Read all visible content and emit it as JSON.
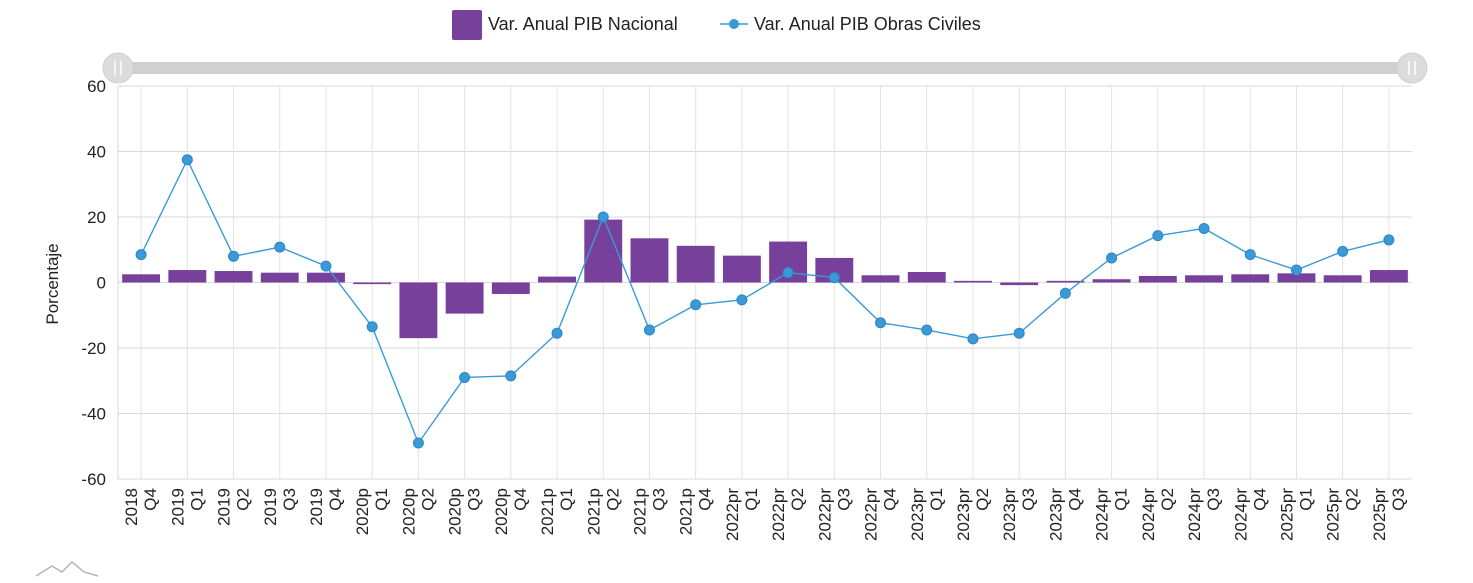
{
  "chart_data": {
    "type": "bar+line",
    "title": "",
    "xlabel": "",
    "ylabel": "Porcentaje",
    "ylim": [
      -60,
      60
    ],
    "yticks": [
      60,
      40,
      20,
      0,
      -20,
      -40,
      -60
    ],
    "grid": true,
    "legend_position": "top",
    "categories": [
      [
        "2018",
        "Q4"
      ],
      [
        "2019",
        "Q1"
      ],
      [
        "2019",
        "Q2"
      ],
      [
        "2019",
        "Q3"
      ],
      [
        "2019",
        "Q4"
      ],
      [
        "2020p",
        "Q1"
      ],
      [
        "2020p",
        "Q2"
      ],
      [
        "2020p",
        "Q3"
      ],
      [
        "2020p",
        "Q4"
      ],
      [
        "2021p",
        "Q1"
      ],
      [
        "2021p",
        "Q2"
      ],
      [
        "2021p",
        "Q3"
      ],
      [
        "2021p",
        "Q4"
      ],
      [
        "2022pr",
        "Q1"
      ],
      [
        "2022pr",
        "Q2"
      ],
      [
        "2022pr",
        "Q3"
      ],
      [
        "2022pr",
        "Q4"
      ],
      [
        "2023pr",
        "Q1"
      ],
      [
        "2023pr",
        "Q2"
      ],
      [
        "2023pr",
        "Q3"
      ],
      [
        "2023pr",
        "Q4"
      ],
      [
        "2024pr",
        "Q1"
      ],
      [
        "2024pr",
        "Q2"
      ],
      [
        "2024pr",
        "Q3"
      ],
      [
        "2024pr",
        "Q4"
      ],
      [
        "2025pr",
        "Q1"
      ],
      [
        "2025pr",
        "Q2"
      ],
      [
        "2025pr",
        "Q3"
      ]
    ],
    "series": [
      {
        "name": "Var. Anual PIB Nacional",
        "type": "bar",
        "color": "#76409b",
        "values": [
          2.5,
          3.8,
          3.5,
          3.0,
          3.0,
          -0.5,
          -17.0,
          -9.5,
          -3.5,
          1.8,
          19.2,
          13.5,
          11.2,
          8.2,
          12.5,
          7.5,
          2.2,
          3.2,
          0.5,
          -0.8,
          0.5,
          1.0,
          2.0,
          2.2,
          2.5,
          2.8,
          2.2,
          3.8
        ]
      },
      {
        "name": "Var. Anual PIB Obras Civiles",
        "type": "line",
        "color": "#3a9ad9",
        "values": [
          8.5,
          37.5,
          8.0,
          10.8,
          5.0,
          -13.5,
          -49.0,
          -29.0,
          -28.5,
          -15.5,
          20.0,
          -14.5,
          -6.8,
          -5.3,
          3.0,
          1.5,
          -12.3,
          -14.5,
          -17.2,
          -15.5,
          -3.3,
          7.5,
          14.3,
          16.5,
          8.5,
          3.8,
          9.5,
          13.0
        ]
      }
    ]
  }
}
